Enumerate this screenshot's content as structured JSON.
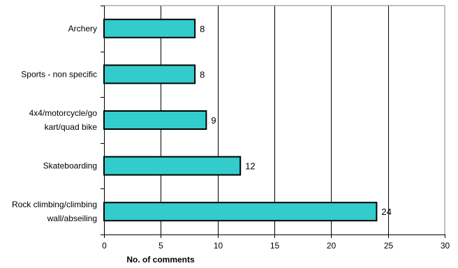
{
  "chart_data": {
    "type": "bar",
    "orientation": "horizontal",
    "categories": [
      [
        "Archery"
      ],
      [
        "Sports - non specific"
      ],
      [
        "4x4/motorcycle/go",
        "kart/quad bike"
      ],
      [
        "Skateboarding"
      ],
      [
        "Rock climbing/climbing",
        "wall/abseiling"
      ]
    ],
    "values": [
      8,
      8,
      9,
      12,
      24
    ],
    "data_labels": [
      "8",
      "8",
      "9",
      "12",
      "24"
    ],
    "title": "",
    "xlabel": "No. of comments",
    "ylabel": "",
    "xlim": [
      0,
      30
    ],
    "x_ticks": [
      "0",
      "5",
      "10",
      "15",
      "20",
      "25",
      "30"
    ],
    "grid": "vertical gridlines",
    "legend": "none",
    "colors": {
      "bar_fill": "#33cccc",
      "bar_stroke": "#000000",
      "gridline": "#000000",
      "plot_border": "#808080"
    }
  }
}
